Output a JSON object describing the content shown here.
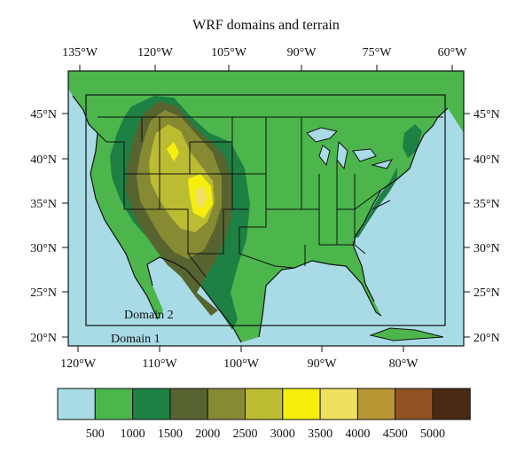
{
  "title": "WRF domains and terrain",
  "top_axis_labels": [
    "135°W",
    "120°W",
    "105°W",
    "90°W",
    "75°W",
    "60°W"
  ],
  "bottom_axis_labels": [
    "120°W",
    "110°W",
    "100°W",
    "90°W",
    "80°W"
  ],
  "left_axis_labels": [
    "45°N",
    "40°N",
    "35°N",
    "30°N",
    "25°N",
    "20°N"
  ],
  "right_axis_labels": [
    "45°N",
    "40°N",
    "35°N",
    "30°N",
    "25°N",
    "20°N"
  ],
  "domains": [
    "Domain 2",
    "Domain 1"
  ],
  "legend": {
    "colors": [
      "#a8dbe6",
      "#4cb64c",
      "#1e8043",
      "#576430",
      "#868a32",
      "#bcbc32",
      "#f6ee0c",
      "#f0e060",
      "#b89832",
      "#945224",
      "#4a2a14"
    ],
    "tick_labels": [
      "500",
      "1000",
      "1500",
      "2000",
      "2500",
      "3000",
      "3500",
      "4000",
      "4500",
      "5000"
    ]
  },
  "ocean_color": "#a8dbe6"
}
